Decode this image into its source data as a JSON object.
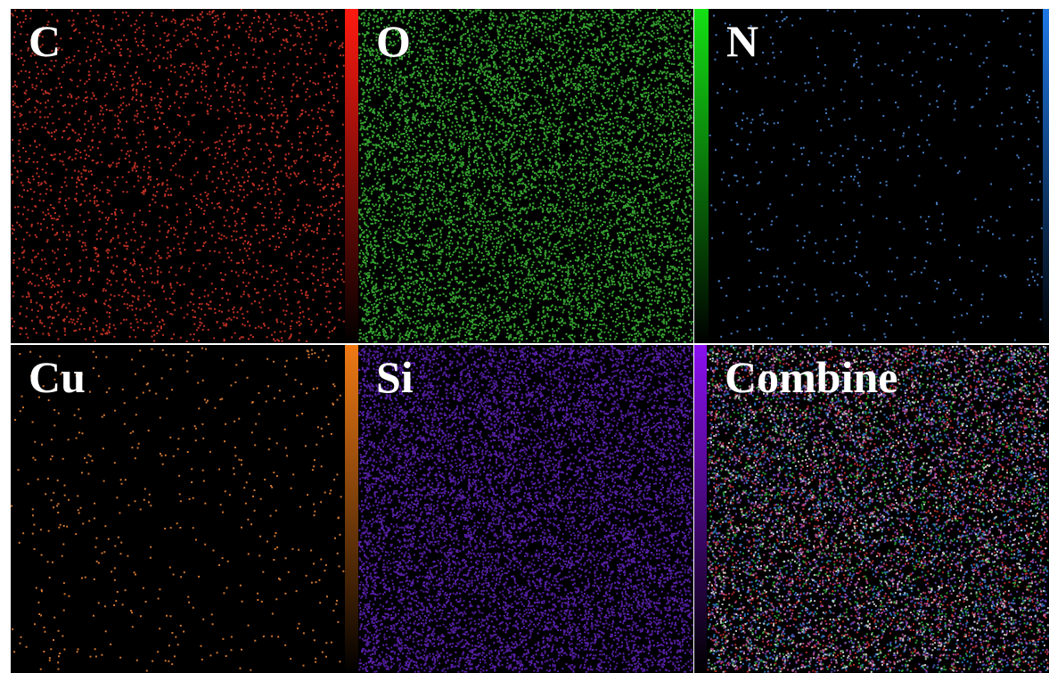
{
  "panels": [
    {
      "label": "C"
    },
    {
      "label": "O"
    },
    {
      "label": "N"
    },
    {
      "label": "Cu"
    },
    {
      "label": "Si"
    },
    {
      "label": "Combine"
    }
  ]
}
